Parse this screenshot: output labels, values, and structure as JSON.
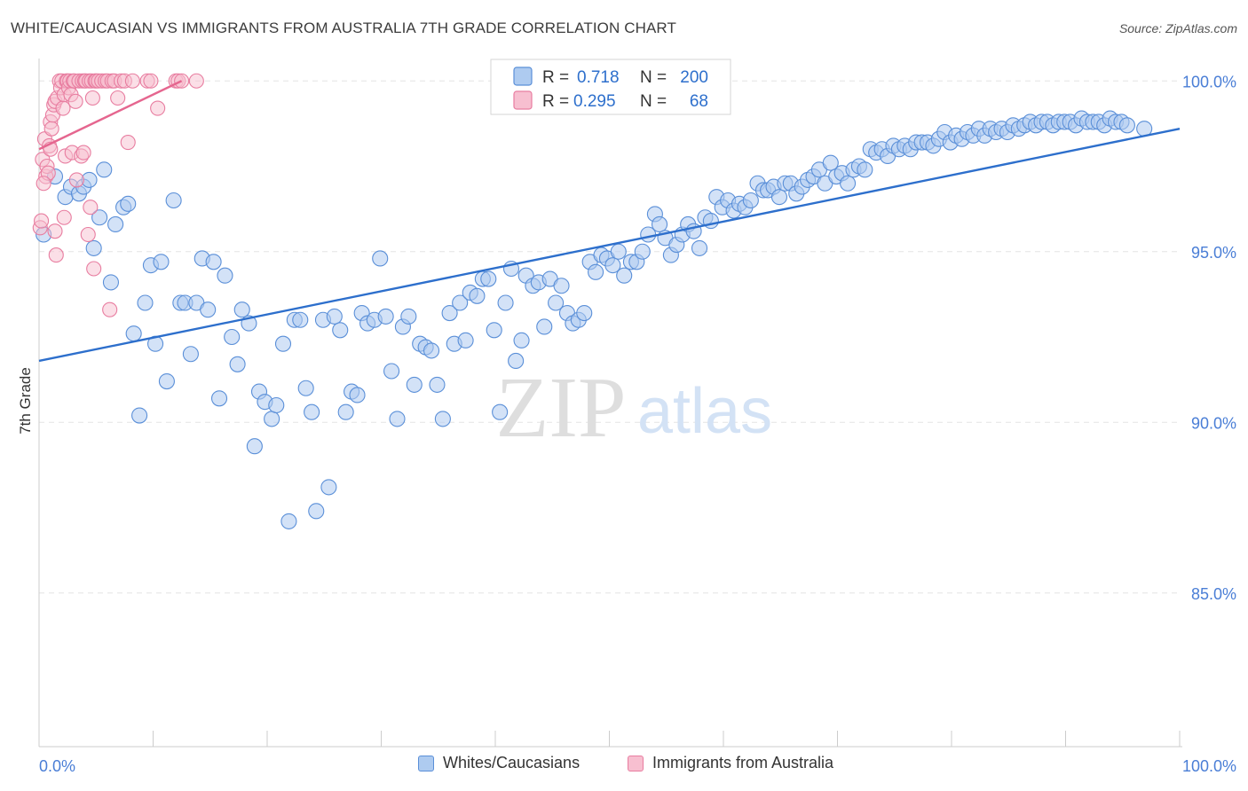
{
  "header": {
    "title": "WHITE/CAUCASIAN VS IMMIGRANTS FROM AUSTRALIA 7TH GRADE CORRELATION CHART",
    "source": "Source: ZipAtlas.com"
  },
  "watermark": {
    "zip": "ZIP",
    "atlas": "atlas"
  },
  "colors": {
    "blue_fill": "#aecbf0",
    "blue_stroke": "#5a8fd8",
    "blue_line": "#2d6fcc",
    "pink_fill": "#f7bfd0",
    "pink_stroke": "#e87da0",
    "pink_line": "#e5668f",
    "tick_label": "#4a7ed6",
    "grid": "#e3e3e3"
  },
  "legend": {
    "rows": [
      {
        "r_label": "R =",
        "r_value": "0.718",
        "n_label": "N =",
        "n_value": "200"
      },
      {
        "r_label": "R =",
        "r_value": "0.295",
        "n_label": "N =",
        "n_value": "68"
      }
    ]
  },
  "bottom_legend": [
    "Whites/Caucasians",
    "Immigrants from Australia"
  ],
  "chart_data": {
    "type": "scatter",
    "title": "WHITE/CAUCASIAN VS IMMIGRANTS FROM AUSTRALIA 7TH GRADE CORRELATION CHART",
    "xlabel": "",
    "ylabel": "7th Grade",
    "xlim": [
      0,
      100
    ],
    "ylim": [
      80.5,
      100.5
    ],
    "x_tick_labels": [
      "0.0%",
      "100.0%"
    ],
    "y_ticks": [
      85,
      90,
      95,
      100
    ],
    "y_tick_labels": [
      "85.0%",
      "90.0%",
      "95.0%",
      "100.0%"
    ],
    "series": [
      {
        "name": "Whites/Caucasians",
        "R": 0.718,
        "N": 200,
        "trend": {
          "x": [
            0,
            100
          ],
          "y": [
            91.8,
            98.6
          ]
        },
        "points": [
          [
            0.4,
            95.5
          ],
          [
            1.4,
            97.2
          ],
          [
            2.3,
            96.6
          ],
          [
            2.8,
            96.9
          ],
          [
            3.5,
            96.7
          ],
          [
            3.9,
            96.9
          ],
          [
            4.4,
            97.1
          ],
          [
            4.8,
            95.1
          ],
          [
            5.3,
            96.0
          ],
          [
            5.7,
            97.4
          ],
          [
            6.3,
            94.1
          ],
          [
            6.7,
            95.8
          ],
          [
            7.4,
            96.3
          ],
          [
            7.8,
            96.4
          ],
          [
            8.3,
            92.6
          ],
          [
            8.8,
            90.2
          ],
          [
            9.3,
            93.5
          ],
          [
            9.8,
            94.6
          ],
          [
            10.2,
            92.3
          ],
          [
            10.7,
            94.7
          ],
          [
            11.2,
            91.2
          ],
          [
            11.8,
            96.5
          ],
          [
            12.4,
            93.5
          ],
          [
            12.8,
            93.5
          ],
          [
            13.3,
            92.0
          ],
          [
            13.8,
            93.5
          ],
          [
            14.3,
            94.8
          ],
          [
            14.8,
            93.3
          ],
          [
            15.3,
            94.7
          ],
          [
            15.8,
            90.7
          ],
          [
            16.3,
            94.3
          ],
          [
            16.9,
            92.5
          ],
          [
            17.4,
            91.7
          ],
          [
            17.8,
            93.3
          ],
          [
            18.4,
            92.9
          ],
          [
            18.9,
            89.3
          ],
          [
            19.3,
            90.9
          ],
          [
            19.8,
            90.6
          ],
          [
            20.4,
            90.1
          ],
          [
            20.8,
            90.5
          ],
          [
            21.4,
            92.3
          ],
          [
            21.9,
            87.1
          ],
          [
            22.4,
            93.0
          ],
          [
            22.9,
            93.0
          ],
          [
            23.4,
            91.0
          ],
          [
            23.9,
            90.3
          ],
          [
            24.3,
            87.4
          ],
          [
            24.9,
            93.0
          ],
          [
            25.4,
            88.1
          ],
          [
            25.9,
            93.1
          ],
          [
            26.4,
            92.7
          ],
          [
            26.9,
            90.3
          ],
          [
            27.4,
            90.9
          ],
          [
            27.9,
            90.8
          ],
          [
            28.3,
            93.2
          ],
          [
            28.8,
            92.9
          ],
          [
            29.4,
            93.0
          ],
          [
            29.9,
            94.8
          ],
          [
            30.4,
            93.1
          ],
          [
            30.9,
            91.5
          ],
          [
            31.4,
            90.1
          ],
          [
            31.9,
            92.8
          ],
          [
            32.4,
            93.1
          ],
          [
            32.9,
            91.1
          ],
          [
            33.4,
            92.3
          ],
          [
            33.9,
            92.2
          ],
          [
            34.4,
            92.1
          ],
          [
            34.9,
            91.1
          ],
          [
            35.4,
            90.1
          ],
          [
            36.0,
            93.2
          ],
          [
            36.4,
            92.3
          ],
          [
            36.9,
            93.5
          ],
          [
            37.4,
            92.4
          ],
          [
            37.8,
            93.8
          ],
          [
            38.4,
            93.7
          ],
          [
            38.9,
            94.2
          ],
          [
            39.4,
            94.2
          ],
          [
            39.9,
            92.7
          ],
          [
            40.4,
            90.3
          ],
          [
            40.9,
            93.5
          ],
          [
            41.4,
            94.5
          ],
          [
            41.8,
            91.8
          ],
          [
            42.3,
            92.4
          ],
          [
            42.7,
            94.3
          ],
          [
            43.3,
            94.0
          ],
          [
            43.8,
            94.1
          ],
          [
            44.3,
            92.8
          ],
          [
            44.8,
            94.2
          ],
          [
            45.3,
            93.5
          ],
          [
            45.8,
            94.0
          ],
          [
            46.3,
            93.2
          ],
          [
            46.8,
            92.9
          ],
          [
            47.3,
            93.0
          ],
          [
            47.8,
            93.2
          ],
          [
            48.3,
            94.7
          ],
          [
            48.8,
            94.4
          ],
          [
            49.3,
            94.9
          ],
          [
            49.8,
            94.8
          ],
          [
            50.3,
            94.6
          ],
          [
            50.8,
            95.0
          ],
          [
            51.3,
            94.3
          ],
          [
            51.9,
            94.7
          ],
          [
            52.4,
            94.7
          ],
          [
            52.9,
            95.0
          ],
          [
            53.4,
            95.5
          ],
          [
            54.0,
            96.1
          ],
          [
            54.4,
            95.8
          ],
          [
            54.9,
            95.4
          ],
          [
            55.4,
            94.9
          ],
          [
            55.9,
            95.2
          ],
          [
            56.4,
            95.5
          ],
          [
            56.9,
            95.8
          ],
          [
            57.4,
            95.6
          ],
          [
            57.9,
            95.1
          ],
          [
            58.4,
            96.0
          ],
          [
            58.9,
            95.9
          ],
          [
            59.4,
            96.6
          ],
          [
            59.9,
            96.3
          ],
          [
            60.4,
            96.5
          ],
          [
            60.9,
            96.2
          ],
          [
            61.4,
            96.4
          ],
          [
            61.9,
            96.3
          ],
          [
            62.4,
            96.5
          ],
          [
            63.0,
            97.0
          ],
          [
            63.5,
            96.8
          ],
          [
            63.9,
            96.8
          ],
          [
            64.4,
            96.9
          ],
          [
            64.9,
            96.6
          ],
          [
            65.4,
            97.0
          ],
          [
            65.9,
            97.0
          ],
          [
            66.4,
            96.7
          ],
          [
            66.9,
            96.9
          ],
          [
            67.4,
            97.1
          ],
          [
            67.9,
            97.2
          ],
          [
            68.4,
            97.4
          ],
          [
            68.9,
            97.0
          ],
          [
            69.4,
            97.6
          ],
          [
            69.9,
            97.2
          ],
          [
            70.4,
            97.3
          ],
          [
            70.9,
            97.0
          ],
          [
            71.4,
            97.4
          ],
          [
            71.9,
            97.5
          ],
          [
            72.4,
            97.4
          ],
          [
            72.9,
            98.0
          ],
          [
            73.4,
            97.9
          ],
          [
            73.9,
            98.0
          ],
          [
            74.4,
            97.8
          ],
          [
            74.9,
            98.1
          ],
          [
            75.4,
            98.0
          ],
          [
            75.9,
            98.1
          ],
          [
            76.4,
            98.0
          ],
          [
            76.9,
            98.2
          ],
          [
            77.4,
            98.2
          ],
          [
            77.9,
            98.2
          ],
          [
            78.4,
            98.1
          ],
          [
            78.9,
            98.3
          ],
          [
            79.4,
            98.5
          ],
          [
            79.9,
            98.2
          ],
          [
            80.4,
            98.4
          ],
          [
            80.9,
            98.3
          ],
          [
            81.4,
            98.5
          ],
          [
            81.9,
            98.4
          ],
          [
            82.4,
            98.6
          ],
          [
            82.9,
            98.4
          ],
          [
            83.4,
            98.6
          ],
          [
            83.9,
            98.5
          ],
          [
            84.4,
            98.6
          ],
          [
            84.9,
            98.5
          ],
          [
            85.4,
            98.7
          ],
          [
            85.9,
            98.6
          ],
          [
            86.4,
            98.7
          ],
          [
            86.9,
            98.8
          ],
          [
            87.4,
            98.7
          ],
          [
            87.9,
            98.8
          ],
          [
            88.4,
            98.8
          ],
          [
            88.9,
            98.7
          ],
          [
            89.4,
            98.8
          ],
          [
            89.9,
            98.8
          ],
          [
            90.4,
            98.8
          ],
          [
            90.9,
            98.7
          ],
          [
            91.4,
            98.9
          ],
          [
            91.9,
            98.8
          ],
          [
            92.4,
            98.8
          ],
          [
            92.9,
            98.8
          ],
          [
            93.4,
            98.7
          ],
          [
            93.9,
            98.9
          ],
          [
            94.4,
            98.8
          ],
          [
            94.9,
            98.8
          ],
          [
            95.4,
            98.7
          ],
          [
            96.9,
            98.6
          ]
        ]
      },
      {
        "name": "Immigrants from Australia",
        "R": 0.295,
        "N": 68,
        "trend": {
          "x": [
            0,
            12.5
          ],
          "y": [
            98.0,
            100.0
          ]
        },
        "points": [
          [
            0.1,
            95.7
          ],
          [
            0.3,
            97.7
          ],
          [
            0.5,
            98.3
          ],
          [
            0.6,
            97.2
          ],
          [
            0.7,
            97.5
          ],
          [
            0.8,
            97.3
          ],
          [
            0.9,
            98.1
          ],
          [
            1.0,
            98.8
          ],
          [
            1.0,
            98.0
          ],
          [
            1.1,
            98.6
          ],
          [
            1.2,
            99.0
          ],
          [
            1.3,
            99.3
          ],
          [
            1.4,
            99.4
          ],
          [
            1.4,
            95.6
          ],
          [
            1.5,
            94.9
          ],
          [
            1.6,
            99.5
          ],
          [
            1.8,
            100.0
          ],
          [
            1.9,
            99.8
          ],
          [
            2.0,
            100.0
          ],
          [
            2.1,
            99.2
          ],
          [
            2.2,
            99.6
          ],
          [
            2.3,
            97.8
          ],
          [
            2.4,
            100.0
          ],
          [
            2.5,
            100.0
          ],
          [
            2.6,
            99.8
          ],
          [
            2.7,
            100.0
          ],
          [
            2.8,
            99.6
          ],
          [
            2.9,
            97.9
          ],
          [
            3.0,
            100.0
          ],
          [
            3.1,
            100.0
          ],
          [
            3.2,
            99.4
          ],
          [
            3.3,
            97.1
          ],
          [
            3.5,
            100.0
          ],
          [
            3.7,
            97.8
          ],
          [
            3.8,
            100.0
          ],
          [
            3.9,
            97.9
          ],
          [
            4.0,
            100.0
          ],
          [
            4.1,
            100.0
          ],
          [
            4.3,
            95.5
          ],
          [
            4.4,
            100.0
          ],
          [
            4.5,
            96.3
          ],
          [
            4.6,
            100.0
          ],
          [
            4.7,
            99.5
          ],
          [
            4.8,
            94.5
          ],
          [
            4.9,
            100.0
          ],
          [
            5.0,
            100.0
          ],
          [
            5.2,
            100.0
          ],
          [
            5.5,
            100.0
          ],
          [
            5.8,
            100.0
          ],
          [
            6.0,
            100.0
          ],
          [
            6.2,
            93.3
          ],
          [
            6.4,
            100.0
          ],
          [
            6.6,
            100.0
          ],
          [
            6.9,
            99.5
          ],
          [
            7.2,
            100.0
          ],
          [
            7.5,
            100.0
          ],
          [
            7.8,
            98.2
          ],
          [
            8.2,
            100.0
          ],
          [
            9.5,
            100.0
          ],
          [
            9.8,
            100.0
          ],
          [
            10.4,
            99.2
          ],
          [
            12.0,
            100.0
          ],
          [
            12.2,
            100.0
          ],
          [
            12.5,
            100.0
          ],
          [
            13.8,
            100.0
          ],
          [
            0.2,
            95.9
          ],
          [
            0.4,
            97.0
          ],
          [
            2.2,
            96.0
          ]
        ]
      }
    ]
  }
}
